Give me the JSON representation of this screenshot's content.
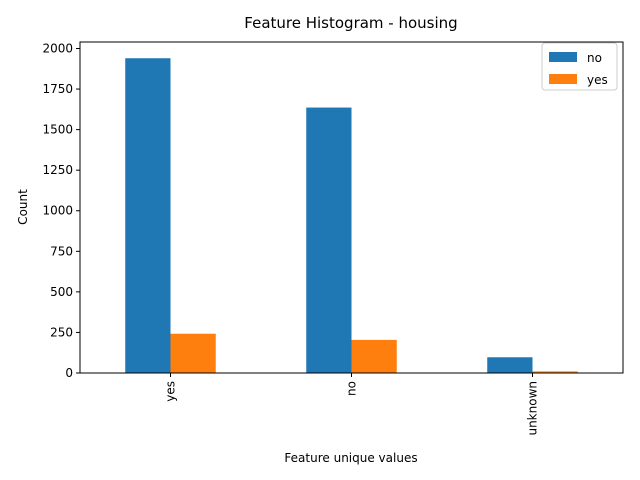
{
  "chart_data": {
    "type": "bar",
    "title": "Feature Histogram - housing",
    "xlabel": "Feature unique values",
    "ylabel": "Count",
    "categories": [
      "yes",
      "no",
      "unknown"
    ],
    "series": [
      {
        "name": "no",
        "color": "#1f77b4",
        "values": [
          1940,
          1636,
          97
        ]
      },
      {
        "name": "yes",
        "color": "#ff7f0e",
        "values": [
          242,
          204,
          10
        ]
      }
    ],
    "ylim": [
      0,
      2040
    ],
    "yticks": [
      0,
      250,
      500,
      750,
      1000,
      1250,
      1500,
      1750,
      2000
    ],
    "x_tick_rotation": "vertical",
    "legend_position": "top-right",
    "grid": false
  }
}
